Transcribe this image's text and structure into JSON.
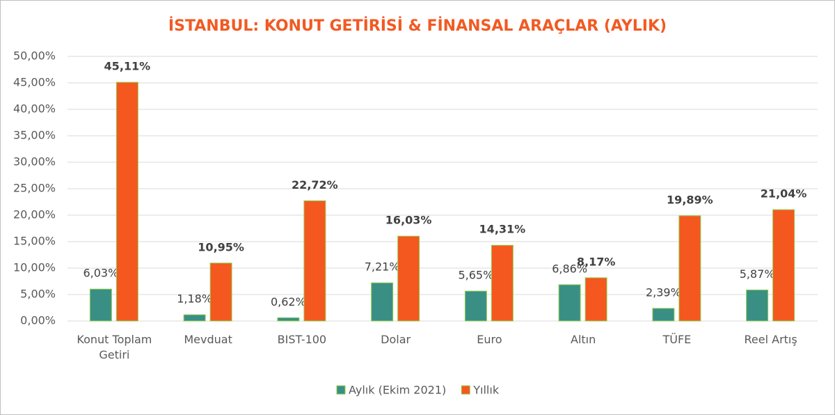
{
  "chart_data": {
    "type": "bar",
    "title": "İSTANBUL: KONUT GETİRİSİ & FİNANSAL ARAÇLAR (AYLIK)",
    "categories": [
      "Konut Toplam Getiri",
      "Mevduat",
      "BIST-100",
      "Dolar",
      "Euro",
      "Altın",
      "TÜFE",
      "Reel Artış"
    ],
    "series": [
      {
        "name": "Aylık (Ekim 2021)",
        "color": "#3a8f84",
        "values": [
          6.03,
          1.18,
          0.62,
          7.21,
          5.65,
          6.86,
          2.39,
          5.87
        ],
        "value_labels": [
          "6,03%",
          "1,18%",
          "0,62%",
          "7,21%",
          "5,65%",
          "6,86%",
          "2,39%",
          "5,87%"
        ]
      },
      {
        "name": "Yıllık",
        "color": "#f4581f",
        "values": [
          45.11,
          10.95,
          22.72,
          16.03,
          14.31,
          8.17,
          19.89,
          21.04
        ],
        "value_labels": [
          "45,11%",
          "10,95%",
          "22,72%",
          "16,03%",
          "14,31%",
          "8,17%",
          "19,89%",
          "21,04%"
        ]
      }
    ],
    "ylim": [
      0,
      50
    ],
    "yticks": [
      {
        "value": 0,
        "label": "0,00%"
      },
      {
        "value": 5,
        "label": "5,00%"
      },
      {
        "value": 10,
        "label": "10,00%"
      },
      {
        "value": 15,
        "label": "15,00%"
      },
      {
        "value": 20,
        "label": "20,00%"
      },
      {
        "value": 25,
        "label": "25,00%"
      },
      {
        "value": 30,
        "label": "30,00%"
      },
      {
        "value": 35,
        "label": "35,00%"
      },
      {
        "value": 40,
        "label": "40,00%"
      },
      {
        "value": 45,
        "label": "45,00%"
      },
      {
        "value": 50,
        "label": "50,00%"
      }
    ],
    "grid": true,
    "legend": "bottom"
  }
}
